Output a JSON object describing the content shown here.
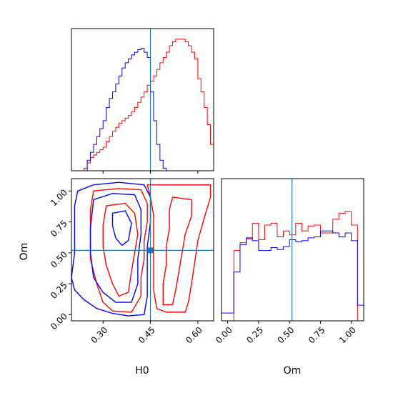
{
  "chart_data": [
    {
      "type": "histogram",
      "panel": "H0 marginal",
      "xlim": [
        0.2,
        0.65
      ],
      "shared_x_ticks": [
        0.3,
        0.45,
        0.6
      ],
      "truth": 0.45,
      "series": [
        {
          "color": "#ff0000",
          "bin_edges": [
            0.2,
            0.21,
            0.22,
            0.23,
            0.24,
            0.25,
            0.26,
            0.27,
            0.28,
            0.29,
            0.3,
            0.31,
            0.32,
            0.33,
            0.34,
            0.35,
            0.36,
            0.37,
            0.38,
            0.39,
            0.4,
            0.41,
            0.42,
            0.43,
            0.44,
            0.45,
            0.46,
            0.47,
            0.48,
            0.49,
            0.5,
            0.51,
            0.52,
            0.53,
            0.54,
            0.55,
            0.56,
            0.57,
            0.58,
            0.59,
            0.6,
            0.61,
            0.62,
            0.63,
            0.64,
            0.65
          ],
          "values": [
            0,
            0,
            0,
            0,
            2,
            6,
            10,
            12,
            14,
            16,
            18,
            22,
            26,
            30,
            33,
            36,
            38,
            40,
            42,
            45,
            48,
            52,
            56,
            60,
            65,
            68,
            72,
            77,
            82,
            86,
            90,
            95,
            98,
            100,
            100,
            100,
            98,
            95,
            90,
            85,
            70,
            60,
            48,
            35,
            20
          ]
        },
        {
          "color": "#0000ff",
          "bin_edges": [
            0.2,
            0.21,
            0.22,
            0.23,
            0.24,
            0.25,
            0.26,
            0.27,
            0.28,
            0.29,
            0.3,
            0.31,
            0.32,
            0.33,
            0.34,
            0.35,
            0.36,
            0.37,
            0.38,
            0.39,
            0.4,
            0.41,
            0.42,
            0.43,
            0.44,
            0.45,
            0.46,
            0.47,
            0.48,
            0.49,
            0.5,
            0.51,
            0.52,
            0.53,
            0.54,
            0.55,
            0.56,
            0.57,
            0.58,
            0.59,
            0.6,
            0.61,
            0.62,
            0.63,
            0.64,
            0.65
          ],
          "values": [
            0,
            0,
            0,
            0,
            0,
            8,
            14,
            20,
            26,
            32,
            38,
            48,
            55,
            60,
            66,
            72,
            78,
            82,
            85,
            88,
            90,
            92,
            93,
            90,
            86,
            60,
            38,
            20,
            8,
            2,
            0,
            0,
            0,
            0,
            0,
            0,
            0,
            0,
            0,
            0,
            0,
            0,
            0,
            0,
            0
          ]
        }
      ]
    },
    {
      "type": "contour",
      "panel": "H0 vs Om joint",
      "xlabel": "H0",
      "ylabel": "Om",
      "xlim": [
        0.2,
        0.65
      ],
      "ylim": [
        -0.05,
        1.1
      ],
      "x_ticks": [
        "0.30",
        "0.45",
        "0.60"
      ],
      "y_ticks": [
        "0.00",
        "0.25",
        "0.50",
        "0.75",
        "1.00"
      ],
      "truth": {
        "x": 0.45,
        "y": 0.52
      },
      "series": [
        {
          "color": "#ff0000",
          "contours": [
            [
              [
                0.44,
                1.05
              ],
              [
                0.64,
                1.05
              ],
              [
                0.64,
                0.95
              ],
              [
                0.62,
                0.78
              ],
              [
                0.6,
                0.6
              ],
              [
                0.59,
                0.42
              ],
              [
                0.58,
                0.25
              ],
              [
                0.57,
                0.1
              ],
              [
                0.56,
                0.02
              ],
              [
                0.5,
                0.02
              ],
              [
                0.47,
                0.05
              ],
              [
                0.46,
                0.2
              ],
              [
                0.46,
                0.4
              ],
              [
                0.46,
                0.6
              ],
              [
                0.46,
                0.8
              ],
              [
                0.45,
                0.95
              ],
              [
                0.44,
                1.05
              ]
            ],
            [
              [
                0.52,
                0.95
              ],
              [
                0.58,
                0.93
              ],
              [
                0.58,
                0.8
              ],
              [
                0.56,
                0.65
              ],
              [
                0.55,
                0.5
              ],
              [
                0.54,
                0.35
              ],
              [
                0.53,
                0.2
              ],
              [
                0.52,
                0.08
              ],
              [
                0.49,
                0.08
              ],
              [
                0.49,
                0.25
              ],
              [
                0.5,
                0.4
              ],
              [
                0.5,
                0.55
              ],
              [
                0.51,
                0.7
              ],
              [
                0.51,
                0.85
              ],
              [
                0.52,
                0.95
              ]
            ],
            [
              [
                0.27,
                1.0
              ],
              [
                0.35,
                1.02
              ],
              [
                0.42,
                1.01
              ],
              [
                0.44,
                0.9
              ],
              [
                0.44,
                0.75
              ],
              [
                0.43,
                0.6
              ],
              [
                0.43,
                0.45
              ],
              [
                0.42,
                0.3
              ],
              [
                0.42,
                0.15
              ],
              [
                0.39,
                0.02
              ],
              [
                0.33,
                0.03
              ],
              [
                0.3,
                0.1
              ],
              [
                0.28,
                0.25
              ],
              [
                0.26,
                0.45
              ],
              [
                0.26,
                0.65
              ],
              [
                0.26,
                0.85
              ],
              [
                0.27,
                1.0
              ]
            ],
            [
              [
                0.31,
                0.88
              ],
              [
                0.37,
                0.9
              ],
              [
                0.4,
                0.82
              ],
              [
                0.41,
                0.65
              ],
              [
                0.4,
                0.5
              ],
              [
                0.39,
                0.35
              ],
              [
                0.38,
                0.18
              ],
              [
                0.35,
                0.15
              ],
              [
                0.33,
                0.25
              ],
              [
                0.31,
                0.4
              ],
              [
                0.3,
                0.55
              ],
              [
                0.3,
                0.72
              ],
              [
                0.31,
                0.88
              ]
            ]
          ]
        },
        {
          "color": "#0000ff",
          "contours": [
            [
              [
                0.22,
                1.0
              ],
              [
                0.27,
                1.05
              ],
              [
                0.35,
                1.07
              ],
              [
                0.43,
                1.05
              ],
              [
                0.45,
                0.95
              ],
              [
                0.45,
                0.75
              ],
              [
                0.44,
                0.55
              ],
              [
                0.44,
                0.35
              ],
              [
                0.44,
                0.15
              ],
              [
                0.43,
                0.0
              ],
              [
                0.38,
                -0.01
              ],
              [
                0.33,
                0.01
              ],
              [
                0.28,
                0.05
              ],
              [
                0.24,
                0.12
              ],
              [
                0.21,
                0.2
              ],
              [
                0.2,
                0.3
              ],
              [
                0.21,
                0.5
              ],
              [
                0.21,
                0.7
              ],
              [
                0.21,
                0.88
              ],
              [
                0.22,
                1.0
              ]
            ],
            [
              [
                0.27,
                0.93
              ],
              [
                0.33,
                0.98
              ],
              [
                0.4,
                0.97
              ],
              [
                0.42,
                0.85
              ],
              [
                0.42,
                0.65
              ],
              [
                0.41,
                0.45
              ],
              [
                0.41,
                0.25
              ],
              [
                0.39,
                0.1
              ],
              [
                0.34,
                0.1
              ],
              [
                0.3,
                0.18
              ],
              [
                0.27,
                0.3
              ],
              [
                0.26,
                0.5
              ],
              [
                0.26,
                0.7
              ],
              [
                0.27,
                0.93
              ]
            ],
            [
              [
                0.33,
                0.82
              ],
              [
                0.37,
                0.84
              ],
              [
                0.39,
                0.74
              ],
              [
                0.38,
                0.6
              ],
              [
                0.36,
                0.56
              ],
              [
                0.34,
                0.62
              ],
              [
                0.33,
                0.72
              ],
              [
                0.33,
                0.82
              ]
            ]
          ]
        }
      ]
    },
    {
      "type": "histogram",
      "panel": "Om marginal",
      "xlabel": "Om",
      "xlim": [
        -0.05,
        1.1
      ],
      "x_ticks": [
        "0.00",
        "0.25",
        "0.50",
        "0.75",
        "1.00"
      ],
      "truth": 0.52,
      "series": [
        {
          "color": "#ff0000",
          "bin_edges": [
            -0.05,
            0.0,
            0.05,
            0.1,
            0.15,
            0.2,
            0.25,
            0.3,
            0.35,
            0.4,
            0.45,
            0.5,
            0.55,
            0.6,
            0.65,
            0.7,
            0.75,
            0.8,
            0.85,
            0.9,
            0.95,
            1.0,
            1.05,
            1.1
          ],
          "values": [
            0,
            0,
            72,
            80,
            84,
            100,
            83,
            98,
            100,
            86,
            92,
            88,
            100,
            92,
            97,
            98,
            90,
            90,
            104,
            110,
            112,
            98,
            0
          ]
        },
        {
          "color": "#0000ff",
          "bin_edges": [
            -0.05,
            0.0,
            0.05,
            0.1,
            0.15,
            0.2,
            0.25,
            0.3,
            0.35,
            0.4,
            0.45,
            0.5,
            0.55,
            0.6,
            0.65,
            0.7,
            0.75,
            0.8,
            0.85,
            0.9,
            0.95,
            1.0,
            1.05,
            1.1
          ],
          "values": [
            8,
            8,
            50,
            78,
            85,
            82,
            72,
            72,
            75,
            73,
            76,
            83,
            81,
            82,
            85,
            86,
            92,
            92,
            90,
            86,
            90,
            82,
            16
          ]
        }
      ]
    }
  ],
  "style": {
    "truth_line_color": "#1f77b4"
  }
}
